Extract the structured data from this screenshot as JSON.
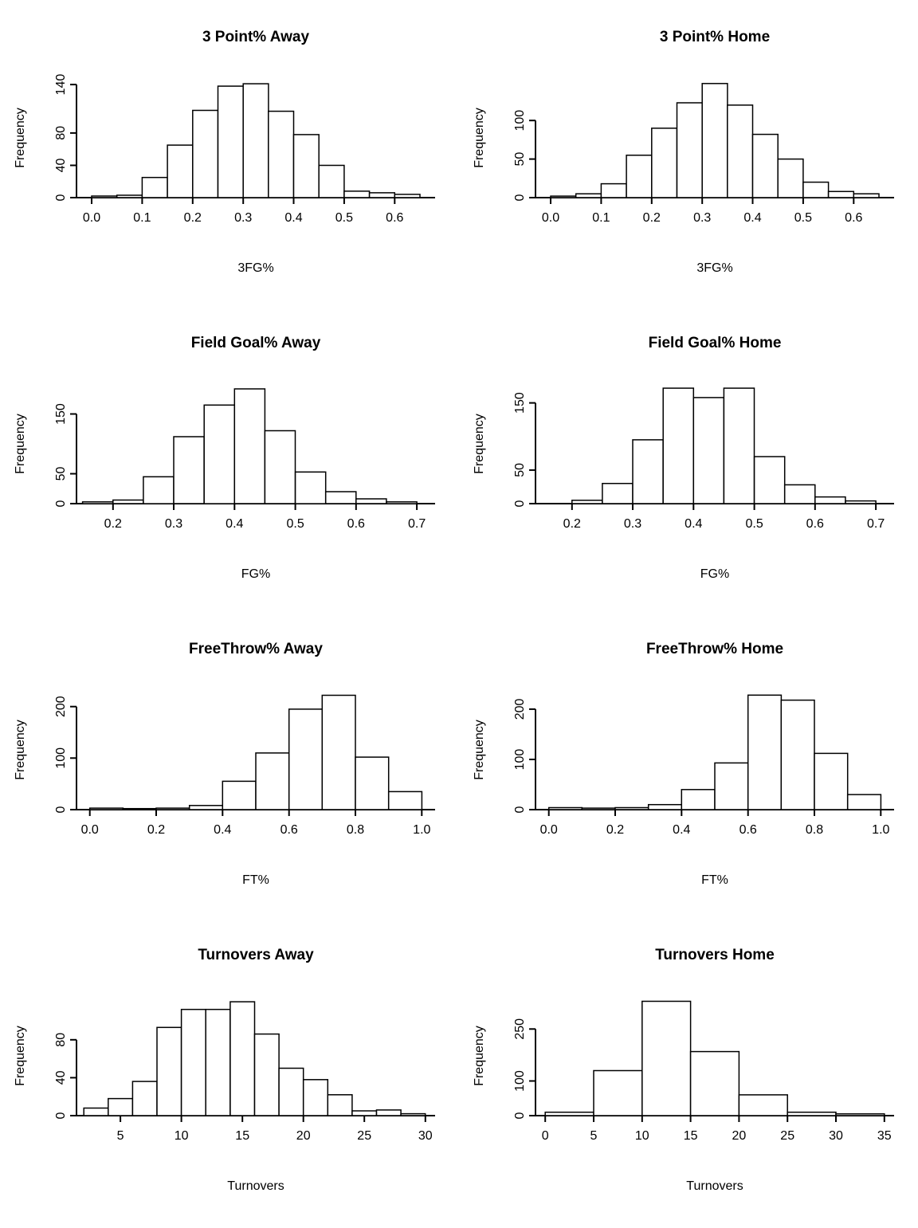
{
  "figure": {
    "layout": {
      "rows": 4,
      "columns": 2
    },
    "background": "#ffffff",
    "axis_color": "#000000",
    "bar_fill": "#ffffff",
    "bar_stroke": "#000000"
  },
  "chart_data": [
    {
      "type": "bar",
      "subtype": "histogram",
      "title": "3 Point% Away",
      "xlabel": "3FG%",
      "ylabel": "Frequency",
      "bin_start": 0.0,
      "bin_width": 0.05,
      "counts": [
        2,
        3,
        25,
        65,
        108,
        138,
        141,
        107,
        78,
        40,
        8,
        6,
        4
      ],
      "x_ticks": [
        0.0,
        0.1,
        0.2,
        0.3,
        0.4,
        0.5,
        0.6
      ],
      "x_tick_labels": [
        "0.0",
        "0.1",
        "0.2",
        "0.3",
        "0.4",
        "0.5",
        "0.6"
      ],
      "y_ticks": [
        0,
        40,
        80,
        140
      ],
      "xlim": [
        -0.03,
        0.68
      ],
      "ylim": [
        0,
        148
      ]
    },
    {
      "type": "bar",
      "subtype": "histogram",
      "title": "3 Point% Home",
      "xlabel": "3FG%",
      "ylabel": "Frequency",
      "bin_start": 0.0,
      "bin_width": 0.05,
      "counts": [
        2,
        5,
        18,
        55,
        90,
        123,
        148,
        120,
        82,
        50,
        20,
        8,
        5
      ],
      "x_ticks": [
        0.0,
        0.1,
        0.2,
        0.3,
        0.4,
        0.5,
        0.6
      ],
      "x_tick_labels": [
        "0.0",
        "0.1",
        "0.2",
        "0.3",
        "0.4",
        "0.5",
        "0.6"
      ],
      "y_ticks": [
        0,
        50,
        100
      ],
      "xlim": [
        -0.03,
        0.68
      ],
      "ylim": [
        0,
        155
      ]
    },
    {
      "type": "bar",
      "subtype": "histogram",
      "title": "Field Goal% Away",
      "xlabel": "FG%",
      "ylabel": "Frequency",
      "bin_start": 0.15,
      "bin_width": 0.05,
      "counts": [
        3,
        6,
        45,
        112,
        165,
        192,
        122,
        53,
        20,
        8,
        3
      ],
      "x_ticks": [
        0.2,
        0.3,
        0.4,
        0.5,
        0.6,
        0.7
      ],
      "x_tick_labels": [
        "0.2",
        "0.3",
        "0.4",
        "0.5",
        "0.6",
        "0.7"
      ],
      "y_ticks": [
        0,
        50,
        150
      ],
      "xlim": [
        0.14,
        0.73
      ],
      "ylim": [
        0,
        200
      ]
    },
    {
      "type": "bar",
      "subtype": "histogram",
      "title": "Field Goal% Home",
      "xlabel": "FG%",
      "ylabel": "Frequency",
      "bin_start": 0.2,
      "bin_width": 0.05,
      "counts": [
        5,
        30,
        95,
        172,
        158,
        172,
        70,
        28,
        10,
        4
      ],
      "x_ticks": [
        0.2,
        0.3,
        0.4,
        0.5,
        0.6,
        0.7
      ],
      "x_tick_labels": [
        "0.2",
        "0.3",
        "0.4",
        "0.5",
        "0.6",
        "0.7"
      ],
      "y_ticks": [
        0,
        50,
        150
      ],
      "xlim": [
        0.14,
        0.73
      ],
      "ylim": [
        0,
        178
      ]
    },
    {
      "type": "bar",
      "subtype": "histogram",
      "title": "FreeThrow% Away",
      "xlabel": "FT%",
      "ylabel": "Frequency",
      "bin_start": 0.0,
      "bin_width": 0.1,
      "counts": [
        3,
        2,
        3,
        8,
        55,
        110,
        195,
        222,
        102,
        35
      ],
      "x_ticks": [
        0.0,
        0.2,
        0.4,
        0.6,
        0.8,
        1.0
      ],
      "x_tick_labels": [
        "0.0",
        "0.2",
        "0.4",
        "0.6",
        "0.8",
        "1.0"
      ],
      "y_ticks": [
        0,
        100,
        200
      ],
      "xlim": [
        -0.04,
        1.04
      ],
      "ylim": [
        0,
        232
      ]
    },
    {
      "type": "bar",
      "subtype": "histogram",
      "title": "FreeThrow% Home",
      "xlabel": "FT%",
      "ylabel": "Frequency",
      "bin_start": 0.0,
      "bin_width": 0.1,
      "counts": [
        4,
        3,
        4,
        10,
        40,
        93,
        228,
        218,
        112,
        30
      ],
      "x_ticks": [
        0.0,
        0.2,
        0.4,
        0.6,
        0.8,
        1.0
      ],
      "x_tick_labels": [
        "0.0",
        "0.2",
        "0.4",
        "0.6",
        "0.8",
        "1.0"
      ],
      "y_ticks": [
        0,
        100,
        200
      ],
      "xlim": [
        -0.04,
        1.04
      ],
      "ylim": [
        0,
        238
      ]
    },
    {
      "type": "bar",
      "subtype": "histogram",
      "title": "Turnovers Away",
      "xlabel": "Turnovers",
      "ylabel": "Frequency",
      "bin_start": 2,
      "bin_width": 2,
      "counts": [
        8,
        18,
        36,
        93,
        112,
        112,
        120,
        86,
        50,
        38,
        22,
        5,
        6,
        2
      ],
      "x_ticks": [
        5,
        10,
        15,
        20,
        25,
        30
      ],
      "x_tick_labels": [
        "5",
        "10",
        "15",
        "20",
        "25",
        "30"
      ],
      "y_ticks": [
        0,
        40,
        80
      ],
      "xlim": [
        1.4,
        30.8
      ],
      "ylim": [
        0,
        126
      ]
    },
    {
      "type": "bar",
      "subtype": "histogram",
      "title": "Turnovers Home",
      "xlabel": "Turnovers",
      "ylabel": "Frequency",
      "bin_start": 0,
      "bin_width": 5,
      "counts": [
        10,
        130,
        330,
        185,
        60,
        10,
        5
      ],
      "x_ticks": [
        0,
        5,
        10,
        15,
        20,
        25,
        30,
        35
      ],
      "x_tick_labels": [
        "0",
        "5",
        "10",
        "15",
        "20",
        "25",
        "30",
        "35"
      ],
      "y_ticks": [
        0,
        100,
        250
      ],
      "xlim": [
        -1.0,
        36.0
      ],
      "ylim": [
        0,
        345
      ]
    }
  ]
}
